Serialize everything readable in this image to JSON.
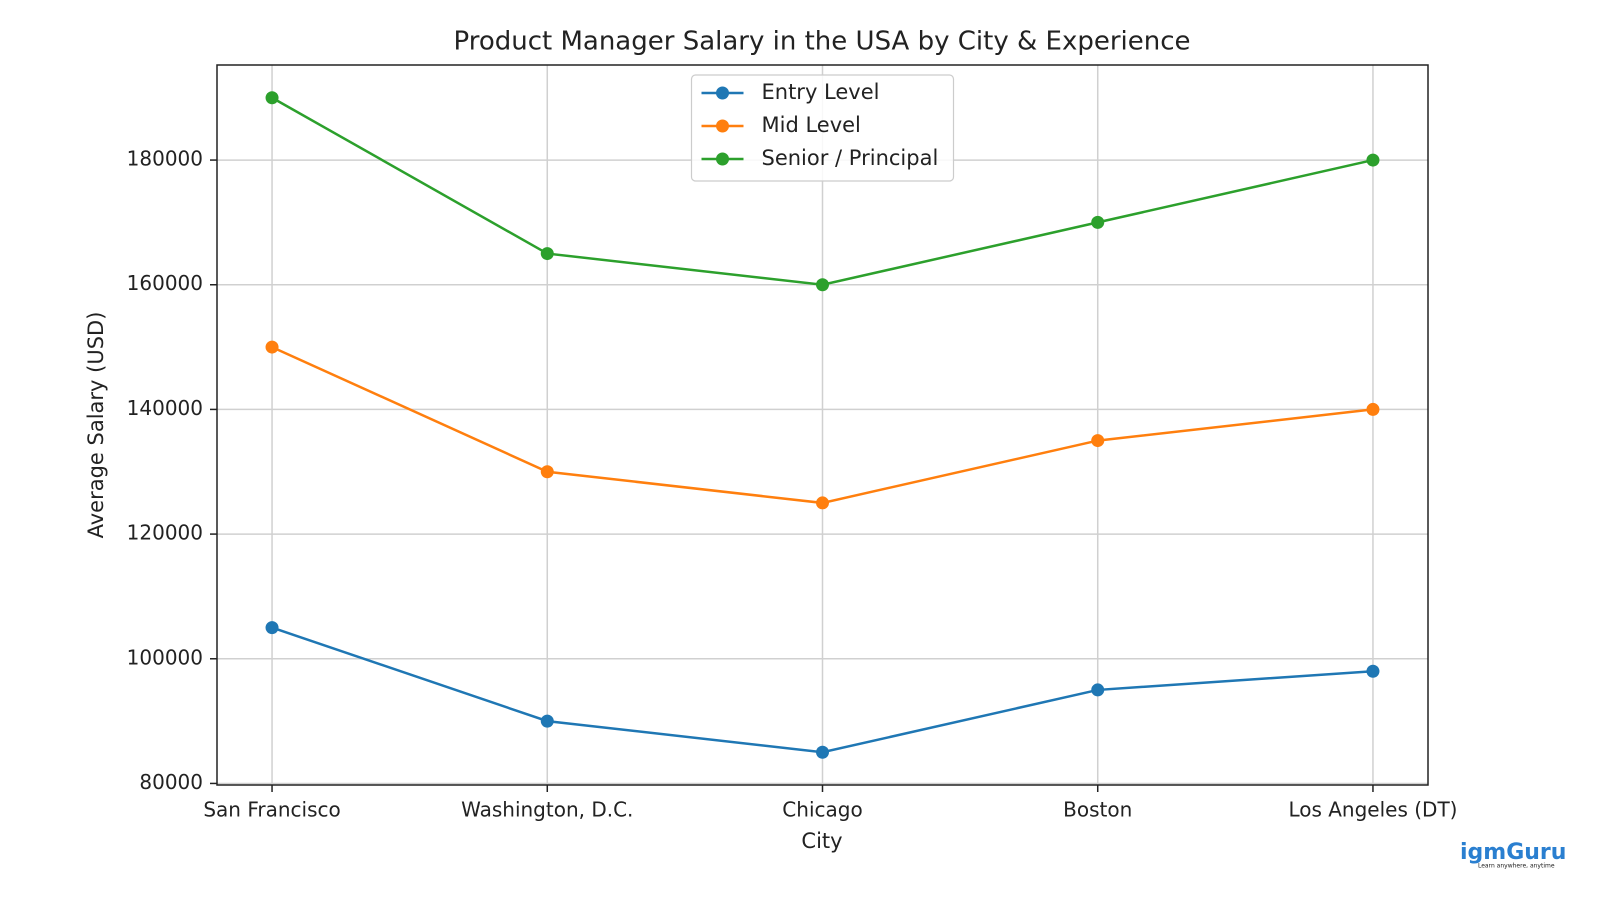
{
  "chart_data": {
    "type": "line",
    "title": "Product Manager Salary in the USA by City & Experience",
    "x_label": "City",
    "y_label": "Average Salary (USD)",
    "categories": [
      "San Francisco",
      "Washington, D.C.",
      "Chicago",
      "Boston",
      "Los Angeles (DT)"
    ],
    "series": [
      {
        "name": "Entry Level",
        "color": "#1f77b4",
        "values": [
          105000,
          90000,
          85000,
          95000,
          98000
        ]
      },
      {
        "name": "Mid Level",
        "color": "#ff7f0e",
        "values": [
          150000,
          130000,
          125000,
          135000,
          140000
        ]
      },
      {
        "name": "Senior / Principal",
        "color": "#2ca02c",
        "values": [
          190000,
          165000,
          160000,
          170000,
          180000
        ]
      }
    ],
    "ylim": [
      79750,
      195250
    ],
    "yticks": [
      80000,
      100000,
      120000,
      140000,
      160000,
      180000
    ],
    "grid": true,
    "legend": "upper center"
  },
  "watermark": {
    "brand": "igmGuru",
    "tagline": "Learn anywhere, anytime"
  }
}
